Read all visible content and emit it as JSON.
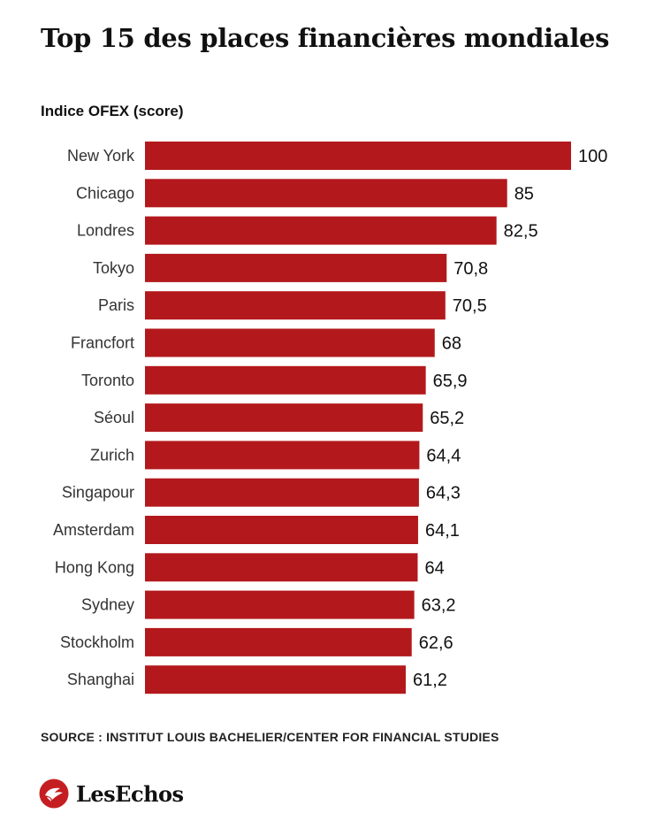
{
  "header": {
    "title": "Top 15 des places financières mondiales",
    "subtitle": "Indice OFEX (score)"
  },
  "colors": {
    "bar": "#B3191C",
    "brand": "#C41E22"
  },
  "chart_data": {
    "type": "bar",
    "orientation": "horizontal",
    "title": "Top 15 des places financières mondiales",
    "xlabel": "",
    "ylabel": "Indice OFEX (score)",
    "xlim": [
      0,
      100
    ],
    "grid": false,
    "categories": [
      "New York",
      "Chicago",
      "Londres",
      "Tokyo",
      "Paris",
      "Francfort",
      "Toronto",
      "Séoul",
      "Zurich",
      "Singapour",
      "Amsterdam",
      "Hong Kong",
      "Sydney",
      "Stockholm",
      "Shanghai"
    ],
    "values": [
      100,
      85,
      82.5,
      70.8,
      70.5,
      68,
      65.9,
      65.2,
      64.4,
      64.3,
      64.1,
      64,
      63.2,
      62.6,
      61.2
    ],
    "value_labels": [
      "100",
      "85",
      "82,5",
      "70,8",
      "70,5",
      "68",
      "65,9",
      "65,2",
      "64,4",
      "64,3",
      "64,1",
      "64",
      "63,2",
      "62,6",
      "61,2"
    ]
  },
  "footer": {
    "source": "SOURCE : INSTITUT LOUIS BACHELIER/CENTER FOR FINANCIAL STUDIES",
    "brand_name": "LesEchos",
    "brand_icon": "les-echos-bird-logo"
  }
}
